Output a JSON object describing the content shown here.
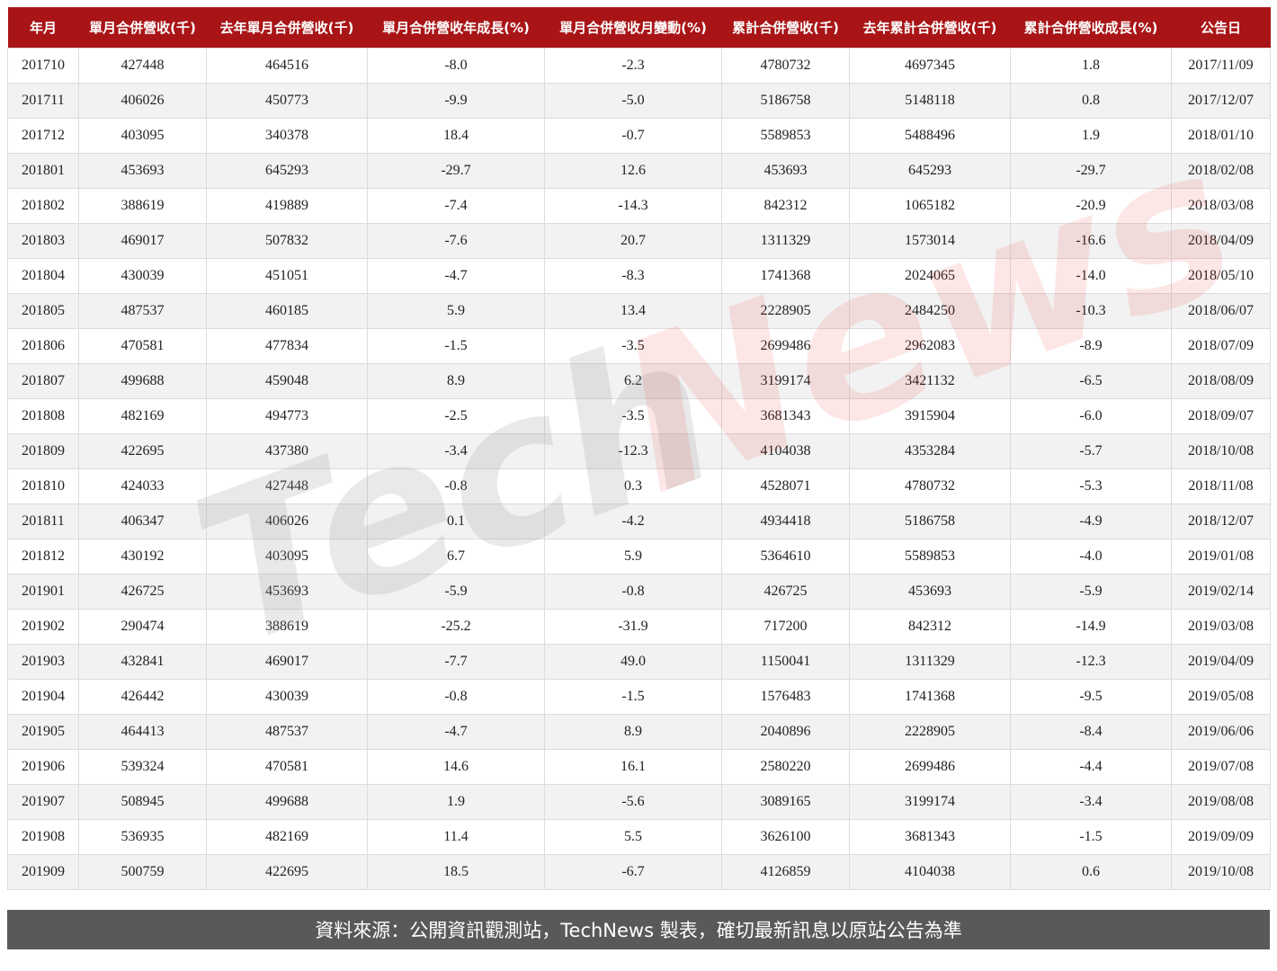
{
  "table": {
    "headers": [
      "年月",
      "單月合併營收(千)",
      "去年單月合併營收(千)",
      "單月合併營收年成長(%)",
      "單月合併營收月變動(%)",
      "累計合併營收(千)",
      "去年累計合併營收(千)",
      "累計合併營收成長(%)",
      "公告日"
    ],
    "rows": [
      [
        "201710",
        "427448",
        "464516",
        "-8.0",
        "-2.3",
        "4780732",
        "4697345",
        "1.8",
        "2017/11/09"
      ],
      [
        "201711",
        "406026",
        "450773",
        "-9.9",
        "-5.0",
        "5186758",
        "5148118",
        "0.8",
        "2017/12/07"
      ],
      [
        "201712",
        "403095",
        "340378",
        "18.4",
        "-0.7",
        "5589853",
        "5488496",
        "1.9",
        "2018/01/10"
      ],
      [
        "201801",
        "453693",
        "645293",
        "-29.7",
        "12.6",
        "453693",
        "645293",
        "-29.7",
        "2018/02/08"
      ],
      [
        "201802",
        "388619",
        "419889",
        "-7.4",
        "-14.3",
        "842312",
        "1065182",
        "-20.9",
        "2018/03/08"
      ],
      [
        "201803",
        "469017",
        "507832",
        "-7.6",
        "20.7",
        "1311329",
        "1573014",
        "-16.6",
        "2018/04/09"
      ],
      [
        "201804",
        "430039",
        "451051",
        "-4.7",
        "-8.3",
        "1741368",
        "2024065",
        "-14.0",
        "2018/05/10"
      ],
      [
        "201805",
        "487537",
        "460185",
        "5.9",
        "13.4",
        "2228905",
        "2484250",
        "-10.3",
        "2018/06/07"
      ],
      [
        "201806",
        "470581",
        "477834",
        "-1.5",
        "-3.5",
        "2699486",
        "2962083",
        "-8.9",
        "2018/07/09"
      ],
      [
        "201807",
        "499688",
        "459048",
        "8.9",
        "6.2",
        "3199174",
        "3421132",
        "-6.5",
        "2018/08/09"
      ],
      [
        "201808",
        "482169",
        "494773",
        "-2.5",
        "-3.5",
        "3681343",
        "3915904",
        "-6.0",
        "2018/09/07"
      ],
      [
        "201809",
        "422695",
        "437380",
        "-3.4",
        "-12.3",
        "4104038",
        "4353284",
        "-5.7",
        "2018/10/08"
      ],
      [
        "201810",
        "424033",
        "427448",
        "-0.8",
        "0.3",
        "4528071",
        "4780732",
        "-5.3",
        "2018/11/08"
      ],
      [
        "201811",
        "406347",
        "406026",
        "0.1",
        "-4.2",
        "4934418",
        "5186758",
        "-4.9",
        "2018/12/07"
      ],
      [
        "201812",
        "430192",
        "403095",
        "6.7",
        "5.9",
        "5364610",
        "5589853",
        "-4.0",
        "2019/01/08"
      ],
      [
        "201901",
        "426725",
        "453693",
        "-5.9",
        "-0.8",
        "426725",
        "453693",
        "-5.9",
        "2019/02/14"
      ],
      [
        "201902",
        "290474",
        "388619",
        "-25.2",
        "-31.9",
        "717200",
        "842312",
        "-14.9",
        "2019/03/08"
      ],
      [
        "201903",
        "432841",
        "469017",
        "-7.7",
        "49.0",
        "1150041",
        "1311329",
        "-12.3",
        "2019/04/09"
      ],
      [
        "201904",
        "426442",
        "430039",
        "-0.8",
        "-1.5",
        "1576483",
        "1741368",
        "-9.5",
        "2019/05/08"
      ],
      [
        "201905",
        "464413",
        "487537",
        "-4.7",
        "8.9",
        "2040896",
        "2228905",
        "-8.4",
        "2019/06/06"
      ],
      [
        "201906",
        "539324",
        "470581",
        "14.6",
        "16.1",
        "2580220",
        "2699486",
        "-4.4",
        "2019/07/08"
      ],
      [
        "201907",
        "508945",
        "499688",
        "1.9",
        "-5.6",
        "3089165",
        "3199174",
        "-3.4",
        "2019/08/08"
      ],
      [
        "201908",
        "536935",
        "482169",
        "11.4",
        "5.5",
        "3626100",
        "3681343",
        "-1.5",
        "2019/09/09"
      ],
      [
        "201909",
        "500759",
        "422695",
        "18.5",
        "-6.7",
        "4126859",
        "4104038",
        "0.6",
        "2019/10/08"
      ]
    ]
  },
  "footer": {
    "text": "資料來源：公開資訊觀測站，TechNews 製表，確切最新訊息以原站公告為準"
  },
  "watermark": {
    "text_gray": "Tech",
    "text_red": "News"
  },
  "colors": {
    "header_bg": "#a91517",
    "footer_bg": "#595959",
    "alt_row": "#f2f2f2"
  }
}
